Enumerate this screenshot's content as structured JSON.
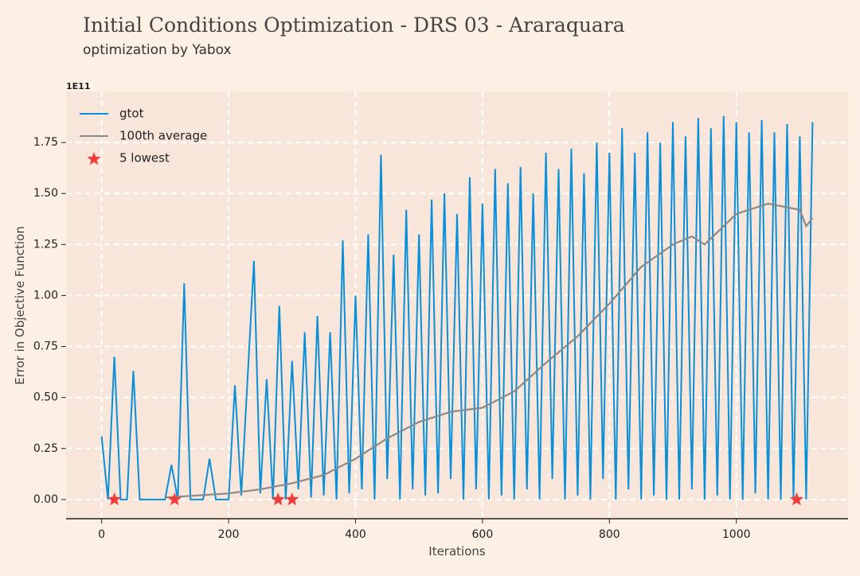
{
  "chart_data": {
    "type": "line",
    "title": "Initial Conditions Optimization - DRS 03 - Araraquara",
    "subtitle": "optimization by Yabox",
    "x_label": "Iterations",
    "y_label": "Error in Objective Function",
    "y_offset_label": "1E11",
    "xlim": [
      -56,
      1176
    ],
    "ylim": [
      -0.094,
      2.0
    ],
    "xticks": [
      0,
      200,
      400,
      600,
      800,
      1000
    ],
    "yticks": [
      {
        "value": 0,
        "label": "0.00"
      },
      {
        "value": 0.25,
        "label": "0.25"
      },
      {
        "value": 0.5,
        "label": "0.50"
      },
      {
        "value": 0.75,
        "label": "0.75"
      },
      {
        "value": 1,
        "label": "1.00"
      },
      {
        "value": 1.25,
        "label": "1.25"
      },
      {
        "value": 1.5,
        "label": "1.50"
      },
      {
        "value": 1.75,
        "label": "1.75"
      }
    ],
    "grid": true,
    "legend": "upper left",
    "series": [
      {
        "name": "gtot",
        "color": "#0a8fd8",
        "kind": "line",
        "x": [
          0,
          10,
          20,
          30,
          40,
          50,
          60,
          70,
          80,
          90,
          100,
          110,
          120,
          130,
          140,
          150,
          160,
          170,
          180,
          190,
          200,
          210,
          220,
          230,
          240,
          250,
          260,
          270,
          280,
          290,
          300,
          310,
          320,
          330,
          340,
          350,
          360,
          370,
          380,
          390,
          400,
          410,
          420,
          430,
          440,
          450,
          460,
          470,
          480,
          490,
          500,
          510,
          520,
          530,
          540,
          550,
          560,
          570,
          580,
          590,
          600,
          610,
          620,
          630,
          640,
          650,
          660,
          670,
          680,
          690,
          700,
          710,
          720,
          730,
          740,
          750,
          760,
          770,
          780,
          790,
          800,
          810,
          820,
          830,
          840,
          850,
          860,
          870,
          880,
          890,
          900,
          910,
          920,
          930,
          940,
          950,
          960,
          970,
          980,
          990,
          1000,
          1010,
          1020,
          1030,
          1040,
          1050,
          1060,
          1070,
          1080,
          1090,
          1100,
          1110,
          1120
        ],
        "values": [
          0.31,
          0.0,
          0.7,
          0.0,
          0.0,
          0.63,
          0.0,
          0.0,
          0.0,
          0.0,
          0.0,
          0.17,
          0.0,
          1.06,
          0.0,
          0.0,
          0.0,
          0.2,
          0.0,
          0.0,
          0.0,
          0.56,
          0.02,
          0.6,
          1.17,
          0.03,
          0.59,
          0.0,
          0.95,
          0.0,
          0.68,
          0.05,
          0.82,
          0.01,
          0.9,
          0.02,
          0.82,
          0.0,
          1.27,
          0.03,
          1.0,
          0.05,
          1.3,
          0.0,
          1.69,
          0.1,
          1.2,
          0.0,
          1.42,
          0.05,
          1.3,
          0.02,
          1.47,
          0.03,
          1.5,
          0.1,
          1.4,
          0.0,
          1.58,
          0.05,
          1.45,
          0.0,
          1.62,
          0.02,
          1.55,
          0.0,
          1.63,
          0.05,
          1.5,
          0.0,
          1.7,
          0.1,
          1.62,
          0.0,
          1.72,
          0.02,
          1.6,
          0.0,
          1.75,
          0.1,
          1.7,
          0.0,
          1.82,
          0.05,
          1.7,
          0.0,
          1.8,
          0.02,
          1.75,
          0.0,
          1.85,
          0.0,
          1.78,
          0.05,
          1.87,
          0.0,
          1.82,
          0.02,
          1.88,
          0.0,
          1.85,
          0.0,
          1.8,
          0.03,
          1.86,
          0.0,
          1.8,
          0.0,
          1.84,
          0.0,
          1.78,
          0.0,
          1.85
        ]
      },
      {
        "name": "100th average",
        "color": "#8a8a8a",
        "kind": "line",
        "x": [
          100,
          150,
          200,
          250,
          300,
          350,
          400,
          450,
          500,
          550,
          600,
          650,
          700,
          750,
          800,
          850,
          900,
          930,
          950,
          1000,
          1050,
          1100,
          1110,
          1120
        ],
        "values": [
          0.01,
          0.02,
          0.03,
          0.05,
          0.08,
          0.12,
          0.2,
          0.3,
          0.38,
          0.43,
          0.45,
          0.53,
          0.67,
          0.8,
          0.96,
          1.14,
          1.25,
          1.29,
          1.25,
          1.4,
          1.45,
          1.42,
          1.34,
          1.38
        ]
      },
      {
        "name": "5 lowest",
        "color": "#f03c3c",
        "kind": "star",
        "x": [
          20,
          115,
          278,
          300,
          1095
        ],
        "values": [
          0.0,
          0.0,
          0.0,
          0.0,
          0.0
        ]
      }
    ]
  }
}
